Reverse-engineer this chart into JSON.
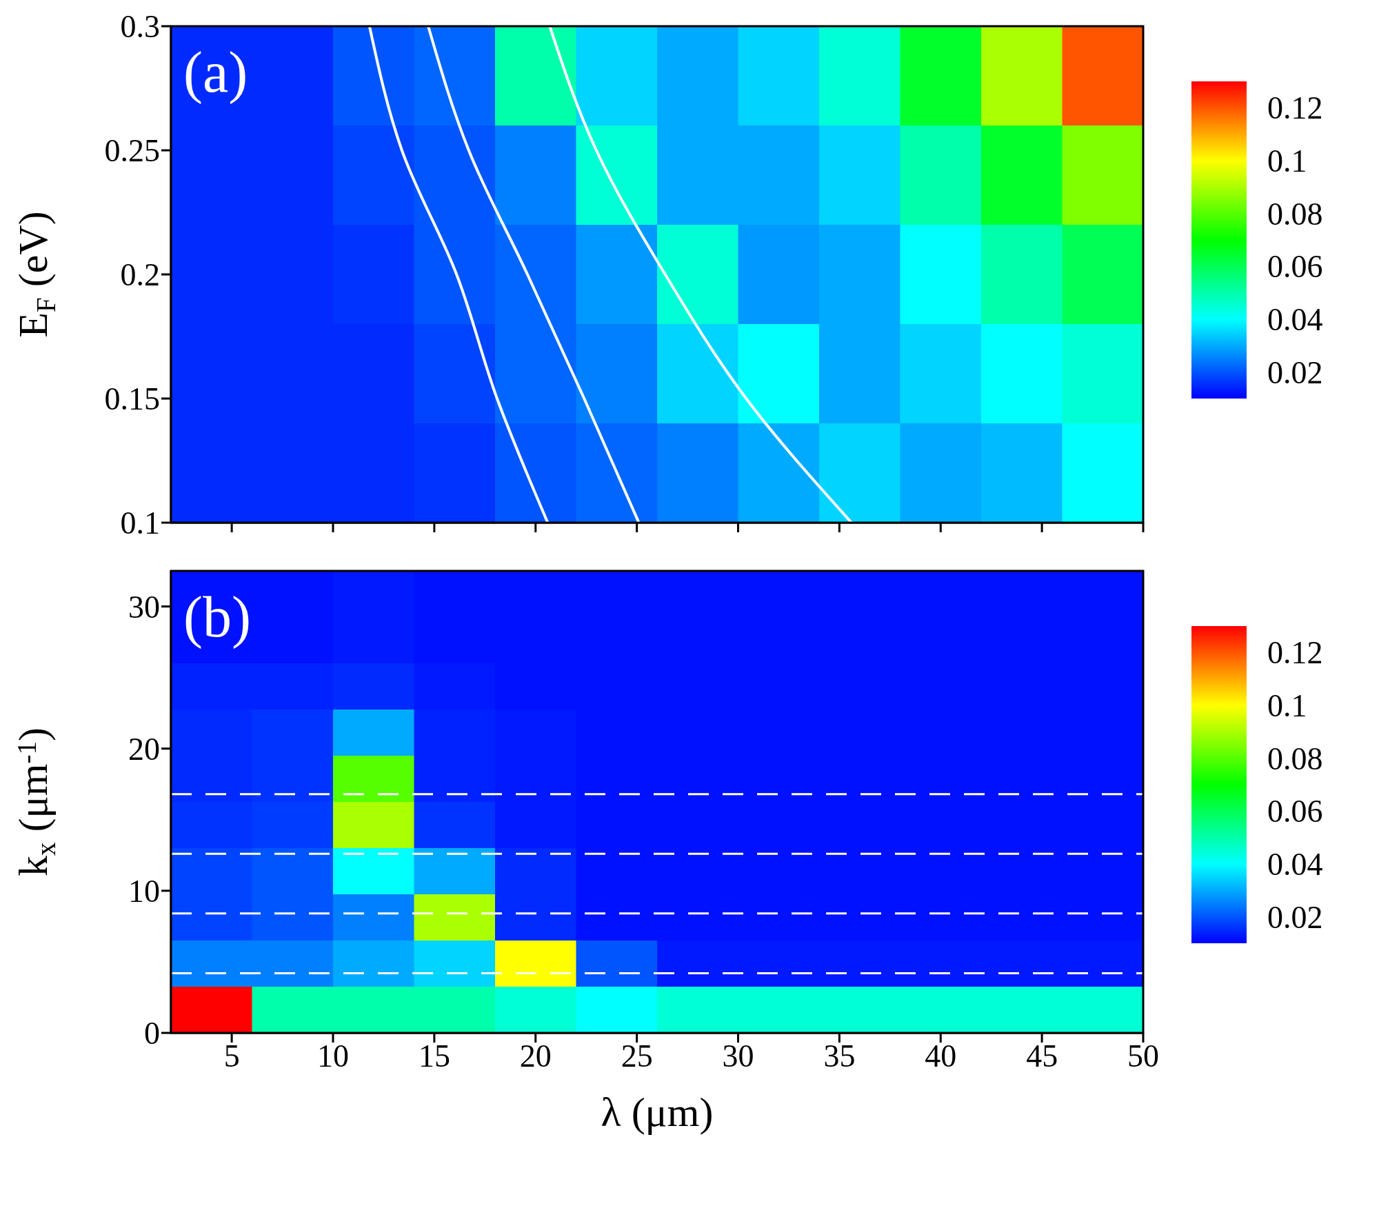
{
  "chart_data": [
    {
      "type": "heatmap",
      "ylabel": "E$_{F}$ (eV)",
      "annotations": [
        "(a)"
      ],
      "tick_labels": "y",
      "xlim": [
        2,
        50
      ],
      "xticks": [
        {
          "value": 5,
          "label": null
        },
        {
          "value": 10,
          "label": null
        },
        {
          "value": 15,
          "label": null
        },
        {
          "value": 20,
          "label": null
        },
        {
          "value": 25,
          "label": null
        },
        {
          "value": 30,
          "label": null
        },
        {
          "value": 35,
          "label": null
        },
        {
          "value": 40,
          "label": null
        },
        {
          "value": 45,
          "label": null
        },
        {
          "value": 50,
          "label": null
        }
      ],
      "ylim": [
        0.1,
        0.3
      ],
      "yticks": [
        0.1,
        0.15,
        0.2,
        0.25,
        0.3
      ],
      "clim": [
        0.01,
        0.13
      ],
      "cticks": [
        0.02,
        0.04,
        0.06,
        0.08,
        0.1,
        0.12
      ],
      "x": [
        4,
        8,
        12,
        16,
        20,
        24,
        28,
        32,
        36,
        40,
        44,
        48
      ],
      "y": [
        0.28,
        0.24,
        0.2,
        0.16,
        0.12
      ],
      "cells": [
        [
          0.015,
          0.015,
          0.02,
          0.022,
          0.05,
          0.035,
          0.03,
          0.035,
          0.045,
          0.065,
          0.09,
          0.12
        ],
        [
          0.015,
          0.015,
          0.018,
          0.02,
          0.025,
          0.045,
          0.03,
          0.03,
          0.035,
          0.05,
          0.065,
          0.085
        ],
        [
          0.015,
          0.015,
          0.016,
          0.02,
          0.022,
          0.028,
          0.045,
          0.028,
          0.03,
          0.04,
          0.05,
          0.06
        ],
        [
          0.015,
          0.015,
          0.015,
          0.018,
          0.022,
          0.025,
          0.035,
          0.04,
          0.03,
          0.035,
          0.04,
          0.045
        ],
        [
          0.015,
          0.015,
          0.015,
          0.016,
          0.02,
          0.022,
          0.025,
          0.03,
          0.035,
          0.03,
          0.032,
          0.04
        ]
      ],
      "series": [
        {
          "type": "line",
          "color": "#ffffff",
          "x": [
            11.8,
            13.4,
            16.1,
            18.1,
            20.6
          ],
          "values": [
            0.3,
            0.25,
            0.2,
            0.15,
            0.1
          ]
        },
        {
          "type": "line",
          "color": "#ffffff",
          "x": [
            14.7,
            16.7,
            19.6,
            22.4,
            25.1
          ],
          "values": [
            0.3,
            0.25,
            0.2,
            0.15,
            0.1
          ]
        },
        {
          "type": "line",
          "color": "#ffffff",
          "x": [
            20.7,
            23,
            26.4,
            30.4,
            35.6
          ],
          "values": [
            0.3,
            0.25,
            0.2,
            0.15,
            0.1
          ]
        }
      ]
    },
    {
      "type": "heatmap",
      "xlabel": "λ (μm)",
      "ylabel": "k$_{x}$ (μm$^{-1}$)",
      "annotations": [
        "(b)"
      ],
      "xlim": [
        2,
        50
      ],
      "xticks": [
        5,
        10,
        15,
        20,
        25,
        30,
        35,
        40,
        45,
        50
      ],
      "ylim": [
        0,
        32.5
      ],
      "yticks": [
        0,
        10,
        20,
        30
      ],
      "clim": [
        0.01,
        0.13
      ],
      "cticks": [
        0.02,
        0.04,
        0.06,
        0.08,
        0.1,
        0.12
      ],
      "x": [
        4,
        8,
        12,
        16,
        20,
        24,
        28,
        32,
        36,
        40,
        44,
        48
      ],
      "y": [
        30.875,
        27.625,
        24.375,
        21.125,
        17.875,
        14.625,
        11.375,
        8.125,
        4.875,
        1.625
      ],
      "cells": [
        [
          0.012,
          0.012,
          0.013,
          0.012,
          0.012,
          0.012,
          0.012,
          0.012,
          0.012,
          0.012,
          0.012,
          0.012
        ],
        [
          0.012,
          0.012,
          0.013,
          0.012,
          0.012,
          0.012,
          0.012,
          0.012,
          0.012,
          0.012,
          0.012,
          0.012
        ],
        [
          0.014,
          0.014,
          0.015,
          0.013,
          0.012,
          0.012,
          0.012,
          0.012,
          0.012,
          0.012,
          0.012,
          0.012
        ],
        [
          0.015,
          0.016,
          0.03,
          0.014,
          0.013,
          0.012,
          0.012,
          0.012,
          0.012,
          0.012,
          0.012,
          0.012
        ],
        [
          0.015,
          0.016,
          0.08,
          0.014,
          0.013,
          0.012,
          0.012,
          0.012,
          0.012,
          0.012,
          0.012,
          0.012
        ],
        [
          0.016,
          0.017,
          0.09,
          0.016,
          0.013,
          0.012,
          0.012,
          0.012,
          0.012,
          0.012,
          0.012,
          0.012
        ],
        [
          0.018,
          0.02,
          0.04,
          0.03,
          0.015,
          0.012,
          0.012,
          0.012,
          0.012,
          0.012,
          0.012,
          0.012
        ],
        [
          0.018,
          0.02,
          0.025,
          0.09,
          0.015,
          0.012,
          0.012,
          0.012,
          0.012,
          0.012,
          0.012,
          0.012
        ],
        [
          0.025,
          0.025,
          0.03,
          0.035,
          0.1,
          0.02,
          0.013,
          0.013,
          0.013,
          0.013,
          0.013,
          0.013
        ],
        [
          0.13,
          0.05,
          0.05,
          0.05,
          0.045,
          0.04,
          0.045,
          0.045,
          0.045,
          0.045,
          0.045,
          0.045
        ]
      ],
      "ref_lines": [
        {
          "axis": "y",
          "value": 16.8,
          "color": "#ffffff",
          "line_style": "dashed"
        },
        {
          "axis": "y",
          "value": 12.6,
          "color": "#ffffff",
          "line_style": "dashed"
        },
        {
          "axis": "y",
          "value": 8.4,
          "color": "#ffffff",
          "line_style": "dashed"
        },
        {
          "axis": "y",
          "value": 4.2,
          "color": "#ffffff",
          "line_style": "dashed"
        }
      ]
    }
  ]
}
